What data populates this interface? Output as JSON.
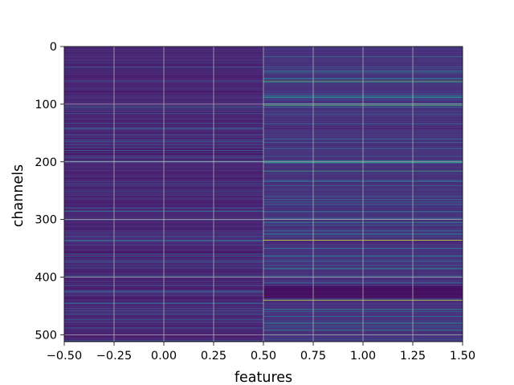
{
  "chart_data": {
    "type": "heatmap",
    "title": "",
    "xlabel": "features",
    "ylabel": "channels",
    "xlim": [
      -0.5,
      1.5
    ],
    "ylim": [
      512,
      0
    ],
    "y_inverted": true,
    "columns": 2,
    "rows": 512,
    "colormap": "viridis",
    "grid": true,
    "grid_color": "#b0b0b0",
    "xticks": [
      "−0.50",
      "−0.25",
      "0.00",
      "0.25",
      "0.50",
      "0.75",
      "1.00",
      "1.25",
      "1.50"
    ],
    "xtick_values": [
      -0.5,
      -0.25,
      0,
      0.25,
      0.5,
      0.75,
      1.0,
      1.25,
      1.5
    ],
    "yticks": [
      "0",
      "100",
      "200",
      "300",
      "400",
      "500"
    ],
    "ytick_values": [
      0,
      100,
      200,
      300,
      400,
      500
    ],
    "column_0": {
      "base_level": 0.06,
      "highlight_rows": [
        [
          60,
          0.25
        ],
        [
          96,
          0.22
        ],
        [
          143,
          0.3
        ],
        [
          199,
          0.38
        ],
        [
          285,
          0.26
        ],
        [
          301,
          0.22
        ],
        [
          336,
          0.3
        ],
        [
          398,
          0.33
        ],
        [
          445,
          0.25
        ],
        [
          478,
          0.24
        ]
      ]
    },
    "column_1": {
      "base_level": 0.1,
      "highlight_rows": [
        [
          18,
          0.4
        ],
        [
          46,
          0.38
        ],
        [
          55,
          0.45
        ],
        [
          60,
          0.75
        ],
        [
          62,
          0.45
        ],
        [
          88,
          0.42
        ],
        [
          102,
          0.7
        ],
        [
          105,
          0.4
        ],
        [
          118,
          0.35
        ],
        [
          134,
          0.35
        ],
        [
          161,
          0.42
        ],
        [
          198,
          0.55
        ],
        [
          200,
          0.6
        ],
        [
          202,
          0.52
        ],
        [
          216,
          0.65
        ],
        [
          241,
          0.38
        ],
        [
          260,
          0.35
        ],
        [
          270,
          0.4
        ],
        [
          286,
          0.42
        ],
        [
          299,
          0.35
        ],
        [
          305,
          0.55
        ],
        [
          320,
          0.42
        ],
        [
          336,
          0.95
        ],
        [
          350,
          0.45
        ],
        [
          363,
          0.4
        ],
        [
          372,
          0.45
        ],
        [
          385,
          0.42
        ],
        [
          398,
          0.4
        ],
        [
          440,
          0.92
        ],
        [
          456,
          0.5
        ],
        [
          468,
          0.45
        ],
        [
          480,
          0.55
        ],
        [
          492,
          0.5
        ],
        [
          500,
          0.45
        ]
      ],
      "dark_band": [
        416,
        436
      ]
    }
  }
}
